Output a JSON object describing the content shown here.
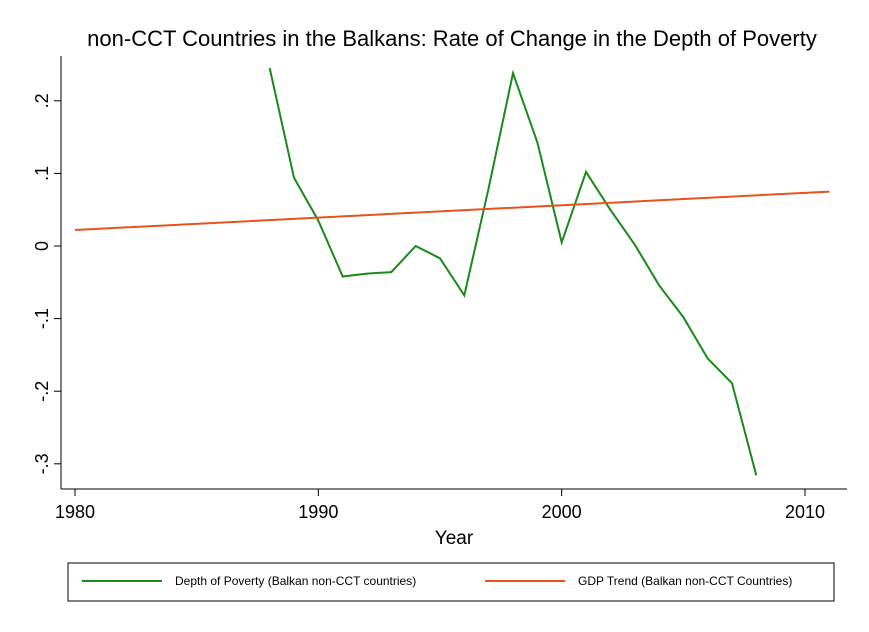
{
  "chart_data": {
    "type": "line",
    "title": "non-CCT Countries in the Balkans: Rate of Change in the Depth of Poverty",
    "xlabel": "Year",
    "ylabel": "",
    "xlim": [
      1980,
      2011
    ],
    "ylim": [
      -0.33,
      0.25
    ],
    "xticks": [
      1980,
      1990,
      2000,
      2010
    ],
    "xtick_labels": [
      "1980",
      "1990",
      "2000",
      "2010"
    ],
    "yticks": [
      -0.3,
      -0.2,
      -0.1,
      0,
      0.1,
      0.2
    ],
    "ytick_labels": [
      "-.3",
      "-.2",
      "-.1",
      "0",
      ".1",
      ".2"
    ],
    "grid": false,
    "legend_position": "bottom",
    "series": [
      {
        "name": "Depth of Poverty (Balkan non-CCT countries)",
        "color": "#1a8a1a",
        "x": [
          1988,
          1989,
          1990,
          1991,
          1992,
          1993,
          1994,
          1995,
          1996,
          1997,
          1998,
          1999,
          2000,
          2001,
          2002,
          2003,
          2004,
          2005,
          2006,
          2007,
          2008
        ],
        "y": [
          0.245,
          0.094,
          0.035,
          -0.042,
          -0.038,
          -0.036,
          0.0,
          -0.017,
          -0.068,
          0.08,
          0.238,
          0.143,
          0.005,
          0.102,
          0.05,
          0.002,
          -0.054,
          -0.098,
          -0.155,
          -0.189,
          -0.316
        ]
      },
      {
        "name": "GDP Trend (Balkan non-CCT Countries)",
        "color": "#e8521e",
        "x": [
          1980,
          2011
        ],
        "y": [
          0.022,
          0.075
        ]
      }
    ]
  }
}
